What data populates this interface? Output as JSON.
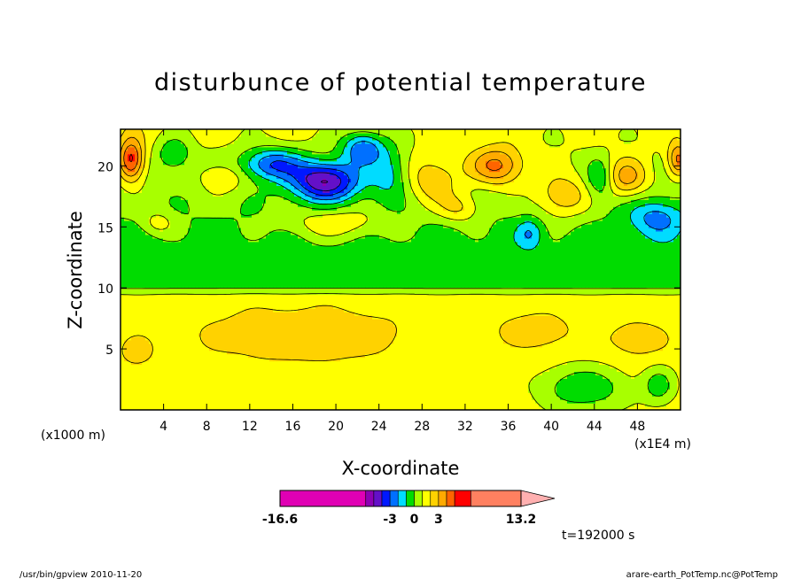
{
  "chart_data": {
    "type": "heatmap",
    "title": "disturbunce of potential temperature",
    "xlabel": "X-coordinate",
    "ylabel": "Z-coordinate",
    "x_unit_left": "(x1000 m)",
    "x_unit_right": "(x1E4 m)",
    "xlim": [
      0,
      52
    ],
    "ylim": [
      0,
      23
    ],
    "x_ticks": [
      4,
      8,
      12,
      16,
      20,
      24,
      28,
      32,
      36,
      40,
      44,
      48
    ],
    "y_ticks": [
      5,
      10,
      15,
      20
    ],
    "time_label": "t=192000 s",
    "colorbar": {
      "labels": [
        {
          "text": "-16.6",
          "value": -16.6
        },
        {
          "text": "-3",
          "value": -3
        },
        {
          "text": "0",
          "value": 0
        },
        {
          "text": "3",
          "value": 3
        },
        {
          "text": "13.2",
          "value": 13.2
        }
      ],
      "bins": [
        {
          "from": -16.6,
          "to": -6,
          "color": "#e000b4"
        },
        {
          "from": -6,
          "to": -5,
          "color": "#8c00b4"
        },
        {
          "from": -5,
          "to": -4,
          "color": "#6410c8"
        },
        {
          "from": -4,
          "to": -3,
          "color": "#0018ff"
        },
        {
          "from": -3,
          "to": -2,
          "color": "#0070ff"
        },
        {
          "from": -2,
          "to": -1,
          "color": "#00dcff"
        },
        {
          "from": -1,
          "to": 0,
          "color": "#00dc00"
        },
        {
          "from": 0,
          "to": 1,
          "color": "#a8ff00"
        },
        {
          "from": 1,
          "to": 2,
          "color": "#ffff00"
        },
        {
          "from": 2,
          "to": 3,
          "color": "#ffd200"
        },
        {
          "from": 3,
          "to": 4,
          "color": "#ffaa00"
        },
        {
          "from": 4,
          "to": 5,
          "color": "#ff6400"
        },
        {
          "from": 5,
          "to": 7,
          "color": "#ff0000"
        },
        {
          "from": 7,
          "to": 13.2,
          "color": "#ff8060"
        }
      ],
      "overflow_color": "#ffb0b0"
    },
    "contour_fields": [
      {
        "x": 17,
        "z": 6.2,
        "rx": 9.5,
        "rz": 2.2,
        "amp": 1.3
      },
      {
        "x": 38.5,
        "z": 6.5,
        "rx": 3.5,
        "rz": 1.5,
        "amp": 1.1
      },
      {
        "x": 48,
        "z": 5.8,
        "rx": 3,
        "rz": 1.6,
        "amp": 1.0
      },
      {
        "x": 1.5,
        "z": 4.8,
        "rx": 1.5,
        "rz": 1.2,
        "amp": 1.0
      },
      {
        "x": 19,
        "z": 18.8,
        "rx": 3.2,
        "rz": 1.6,
        "amp": -5.6
      },
      {
        "x": 14,
        "z": 20.2,
        "rx": 3,
        "rz": 1.3,
        "amp": -3.6
      },
      {
        "x": 22.5,
        "z": 21.5,
        "rx": 2,
        "rz": 1.4,
        "amp": -3.7
      },
      {
        "x": 5,
        "z": 21,
        "rx": 1.5,
        "rz": 1.3,
        "amp": -2.0
      },
      {
        "x": 25,
        "z": 19.5,
        "rx": 1.8,
        "rz": 2.2,
        "amp": -2.0
      },
      {
        "x": 49.8,
        "z": 15.8,
        "rx": 2.6,
        "rz": 1.5,
        "amp": -2.5
      },
      {
        "x": 38,
        "z": 14.5,
        "rx": 1.2,
        "rz": 1.2,
        "amp": -1.8
      },
      {
        "x": 44.5,
        "z": 19,
        "rx": 1.2,
        "rz": 1.6,
        "amp": -2.0
      },
      {
        "x": 9.5,
        "z": 19,
        "rx": 2,
        "rz": 1.2,
        "amp": 1.5
      },
      {
        "x": 20,
        "z": 15.3,
        "rx": 4.5,
        "rz": 1.3,
        "amp": 1.8
      },
      {
        "x": 29,
        "z": 18.8,
        "rx": 2.5,
        "rz": 2,
        "amp": 2.2
      },
      {
        "x": 35,
        "z": 20,
        "rx": 2.5,
        "rz": 1.6,
        "amp": 3.5
      },
      {
        "x": 41,
        "z": 17.5,
        "rx": 2.5,
        "rz": 1.8,
        "amp": 2.5
      },
      {
        "x": 47,
        "z": 19,
        "rx": 2,
        "rz": 1.6,
        "amp": 2.8
      },
      {
        "x": 1,
        "z": 20.5,
        "rx": 1.2,
        "rz": 1.8,
        "amp": 4.5
      },
      {
        "x": 51.8,
        "z": 20.5,
        "rx": 1,
        "rz": 1.4,
        "amp": 3.5
      },
      {
        "x": 31.5,
        "z": 16.5,
        "rx": 2,
        "rz": 1.2,
        "amp": 1.8
      },
      {
        "x": 3.5,
        "z": 15.3,
        "rx": 1.5,
        "rz": 1,
        "amp": 1.5
      },
      {
        "x": 43,
        "z": 1.8,
        "rx": 4,
        "rz": 1.8,
        "amp": -2.4
      },
      {
        "x": 50,
        "z": 2,
        "rx": 1.5,
        "rz": 1.5,
        "amp": -2.0
      }
    ]
  },
  "footer": {
    "left": "/usr/bin/gpview  2010-11-20",
    "right": "arare-earth_PotTemp.nc@PotTemp"
  }
}
